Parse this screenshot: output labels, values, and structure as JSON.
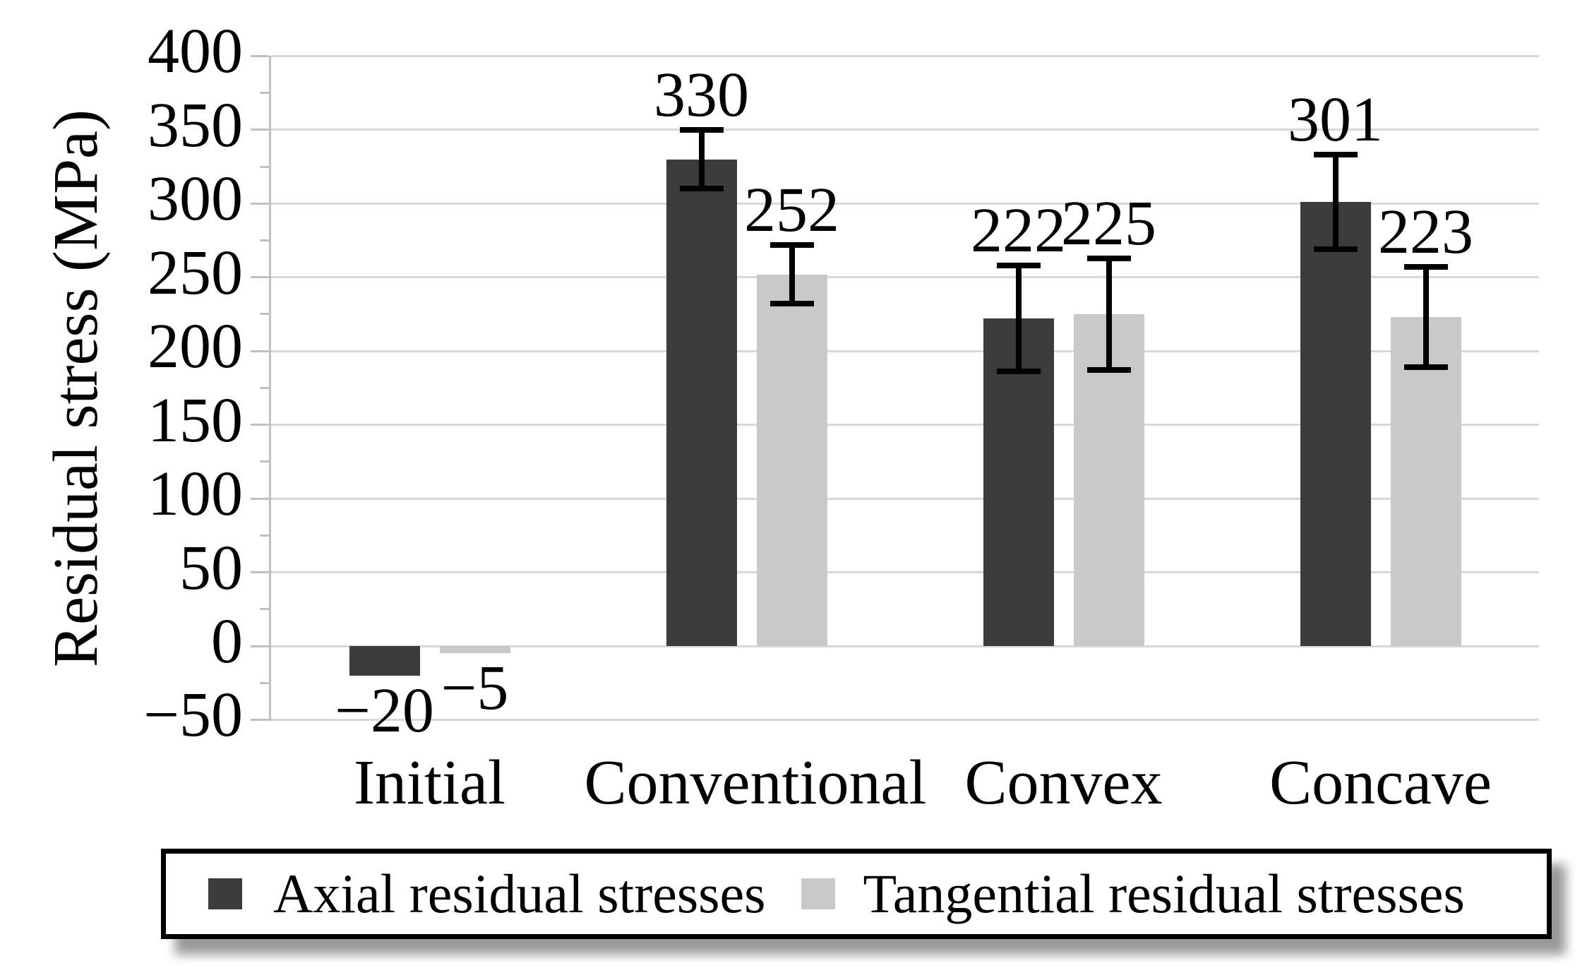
{
  "chart_data": {
    "type": "bar",
    "title": "",
    "ylabel": "Residual stress (MPa)",
    "xlabel": "",
    "categories": [
      "Initial",
      "Conventional",
      "Convex",
      "Concave"
    ],
    "series": [
      {
        "name": "Axial residual stresses",
        "color": "#3c3c3c",
        "values": [
          -20,
          330,
          222,
          301
        ],
        "errors": [
          0,
          20,
          36,
          32
        ]
      },
      {
        "name": "Tangential residual stresses",
        "color": "#c9c9c9",
        "values": [
          -5,
          252,
          225,
          223
        ],
        "errors": [
          0,
          20,
          38,
          34
        ]
      }
    ],
    "data_labels": [
      "-20",
      "-5",
      "330",
      "252",
      "222",
      "225",
      "301",
      "223"
    ],
    "y_axis": {
      "min": -50,
      "max": 400,
      "major_step": 50,
      "minor_step": 25,
      "tick_labels": [
        400,
        350,
        300,
        250,
        200,
        150,
        100,
        50,
        0,
        -50
      ]
    },
    "ylim": [
      -50,
      400
    ],
    "grid": true,
    "legend_position": "bottom",
    "colors": {
      "axial_bar": "#3c3c3c",
      "tangential_bar": "#c9c9c9",
      "gridline": "#d8d8d8",
      "axis_line": "#c0c0c0",
      "error_bar": "#000000",
      "text": "#000000",
      "legend_border": "#000000",
      "background": "#ffffff"
    }
  }
}
